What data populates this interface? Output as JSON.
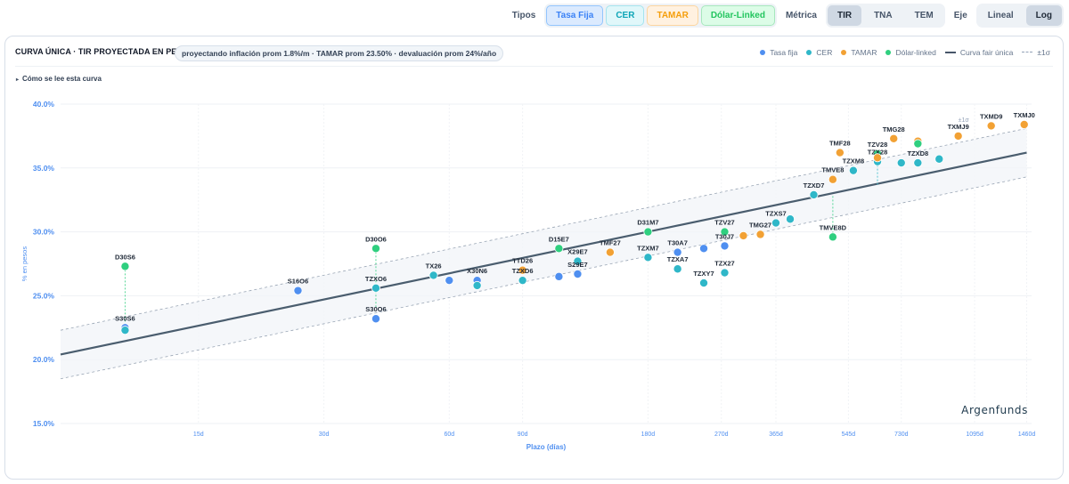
{
  "toolbar": {
    "tipos_label": "Tipos",
    "tipos": [
      {
        "label": "Tasa Fija",
        "key": "fija"
      },
      {
        "label": "CER",
        "key": "cer"
      },
      {
        "label": "TAMAR",
        "key": "tamar"
      },
      {
        "label": "Dólar-Linked",
        "key": "dolar"
      }
    ],
    "metrica_label": "Métrica",
    "metricas": [
      "TIR",
      "TNA",
      "TEM"
    ],
    "metrica_active": "TIR",
    "eje_label": "Eje",
    "ejes": [
      "Lineal",
      "Log"
    ],
    "eje_active": "Log"
  },
  "card": {
    "title": "CURVA ÚNICA · TIR PROYECTADA EN PESOS",
    "assumptions": "proyectando inflación prom 1.8%/m · TAMAR prom 23.50% · devaluación prom 24%/año",
    "howto": "Cómo se lee esta curva",
    "watermark": "Argenfunds",
    "legend": {
      "fija": "Tasa fija",
      "cer": "CER",
      "tamar": "TAMAR",
      "dolar": "Dólar-linked",
      "fair": "Curva fair única",
      "band": "±1σ"
    }
  },
  "colors": {
    "fija": "#4f8ff0",
    "cer": "#2fb7c8",
    "tamar": "#f2a134",
    "dolar": "#2fcf7f",
    "fair": "#4a5d6e",
    "band": "#9aa6b5"
  },
  "chart_data": {
    "type": "scatter",
    "xscale": "log",
    "xlabel": "Plazo (días)",
    "ylabel": "% en pesos",
    "xlim": [
      7,
      1500
    ],
    "ylim": [
      15,
      40
    ],
    "xticks": [
      15,
      30,
      60,
      90,
      180,
      270,
      365,
      545,
      730,
      1095,
      1460
    ],
    "xtick_labels": [
      "15d",
      "30d",
      "60d",
      "90d",
      "180d",
      "270d",
      "365d",
      "545d",
      "730d",
      "1095d",
      "1460d"
    ],
    "yticks": [
      15,
      20,
      25,
      30,
      35,
      40
    ],
    "ytick_labels": [
      "15.0%",
      "20.0%",
      "25.0%",
      "30.0%",
      "35.0%",
      "40.0%"
    ],
    "fair_curve": {
      "x": [
        7,
        1460
      ],
      "y": [
        20.4,
        36.2
      ]
    },
    "band_label": "±1σ",
    "band_sigma": 1.9,
    "points": [
      {
        "label": "S30S6",
        "x": 10,
        "y": 22.5,
        "series": "fija",
        "proj": 22.7
      },
      {
        "label": "",
        "x": 10,
        "y": 22.3,
        "series": "cer"
      },
      {
        "label": "D30S6",
        "x": 10,
        "y": 27.3,
        "series": "dolar",
        "proj": 22.6
      },
      {
        "label": "S16O6",
        "x": 26,
        "y": 25.4,
        "series": "fija"
      },
      {
        "label": "D30O6",
        "x": 40,
        "y": 28.7,
        "series": "dolar",
        "proj": 24.0
      },
      {
        "label": "TZXO6",
        "x": 40,
        "y": 25.6,
        "series": "cer"
      },
      {
        "label": "S30O6",
        "x": 40,
        "y": 23.2,
        "series": "fija"
      },
      {
        "label": "TX26",
        "x": 55,
        "y": 26.6,
        "series": "cer"
      },
      {
        "label": "",
        "x": 60,
        "y": 26.2,
        "series": "fija"
      },
      {
        "label": "X30N6",
        "x": 70,
        "y": 26.2,
        "series": "fija"
      },
      {
        "label": "",
        "x": 70,
        "y": 25.8,
        "series": "cer"
      },
      {
        "label": "TTD26",
        "x": 90,
        "y": 27.0,
        "series": "tamar"
      },
      {
        "label": "TZXD6",
        "x": 90,
        "y": 26.2,
        "series": "cer"
      },
      {
        "label": "D15E7",
        "x": 110,
        "y": 28.7,
        "series": "dolar"
      },
      {
        "label": "",
        "x": 110,
        "y": 26.5,
        "series": "fija"
      },
      {
        "label": "X29E7",
        "x": 122,
        "y": 27.7,
        "series": "cer"
      },
      {
        "label": "S29E7",
        "x": 122,
        "y": 26.7,
        "series": "fija"
      },
      {
        "label": "TMF27",
        "x": 146,
        "y": 28.4,
        "series": "tamar"
      },
      {
        "label": "D31M7",
        "x": 180,
        "y": 30.0,
        "series": "dolar"
      },
      {
        "label": "TZXM7",
        "x": 180,
        "y": 28.0,
        "series": "cer"
      },
      {
        "label": "T30A7",
        "x": 212,
        "y": 28.4,
        "series": "fija"
      },
      {
        "label": "TZXA7",
        "x": 212,
        "y": 27.1,
        "series": "cer"
      },
      {
        "label": "",
        "x": 245,
        "y": 28.7,
        "series": "fija"
      },
      {
        "label": "TZXY7",
        "x": 245,
        "y": 26.0,
        "series": "cer"
      },
      {
        "label": "TZV27",
        "x": 275,
        "y": 30.0,
        "series": "dolar"
      },
      {
        "label": "T30J7",
        "x": 275,
        "y": 28.9,
        "series": "fija"
      },
      {
        "label": "TZX27",
        "x": 275,
        "y": 26.8,
        "series": "cer"
      },
      {
        "label": "",
        "x": 305,
        "y": 29.7,
        "series": "tamar"
      },
      {
        "label": "TMG27",
        "x": 335,
        "y": 29.8,
        "series": "tamar"
      },
      {
        "label": "TZXS7",
        "x": 365,
        "y": 30.7,
        "series": "cer"
      },
      {
        "label": "",
        "x": 395,
        "y": 31.0,
        "series": "cer"
      },
      {
        "label": "TZXD7",
        "x": 450,
        "y": 32.9,
        "series": "cer"
      },
      {
        "label": "TMVE8",
        "x": 500,
        "y": 34.1,
        "series": "tamar"
      },
      {
        "label": "TMVE8D",
        "x": 500,
        "y": 29.6,
        "series": "dolar",
        "proj": 32.9
      },
      {
        "label": "TMF28",
        "x": 520,
        "y": 36.2,
        "series": "tamar"
      },
      {
        "label": "TZXM8",
        "x": 560,
        "y": 34.8,
        "series": "cer"
      },
      {
        "label": "TZV28",
        "x": 640,
        "y": 36.1,
        "series": "dolar"
      },
      {
        "label": "TZX28",
        "x": 640,
        "y": 35.5,
        "series": "cer",
        "proj": 33.6
      },
      {
        "label": "",
        "x": 640,
        "y": 35.8,
        "series": "tamar"
      },
      {
        "label": "TMG28",
        "x": 700,
        "y": 37.3,
        "series": "tamar"
      },
      {
        "label": "",
        "x": 730,
        "y": 35.4,
        "series": "cer"
      },
      {
        "label": "TZXD8",
        "x": 800,
        "y": 35.4,
        "series": "cer"
      },
      {
        "label": "",
        "x": 800,
        "y": 37.1,
        "series": "tamar"
      },
      {
        "label": "",
        "x": 800,
        "y": 36.9,
        "series": "dolar"
      },
      {
        "label": "",
        "x": 900,
        "y": 35.7,
        "series": "cer"
      },
      {
        "label": "TXMJ9",
        "x": 1000,
        "y": 37.5,
        "series": "tamar"
      },
      {
        "label": "TXMD9",
        "x": 1200,
        "y": 38.3,
        "series": "tamar"
      },
      {
        "label": "TXMJ0",
        "x": 1440,
        "y": 38.4,
        "series": "tamar"
      }
    ]
  }
}
